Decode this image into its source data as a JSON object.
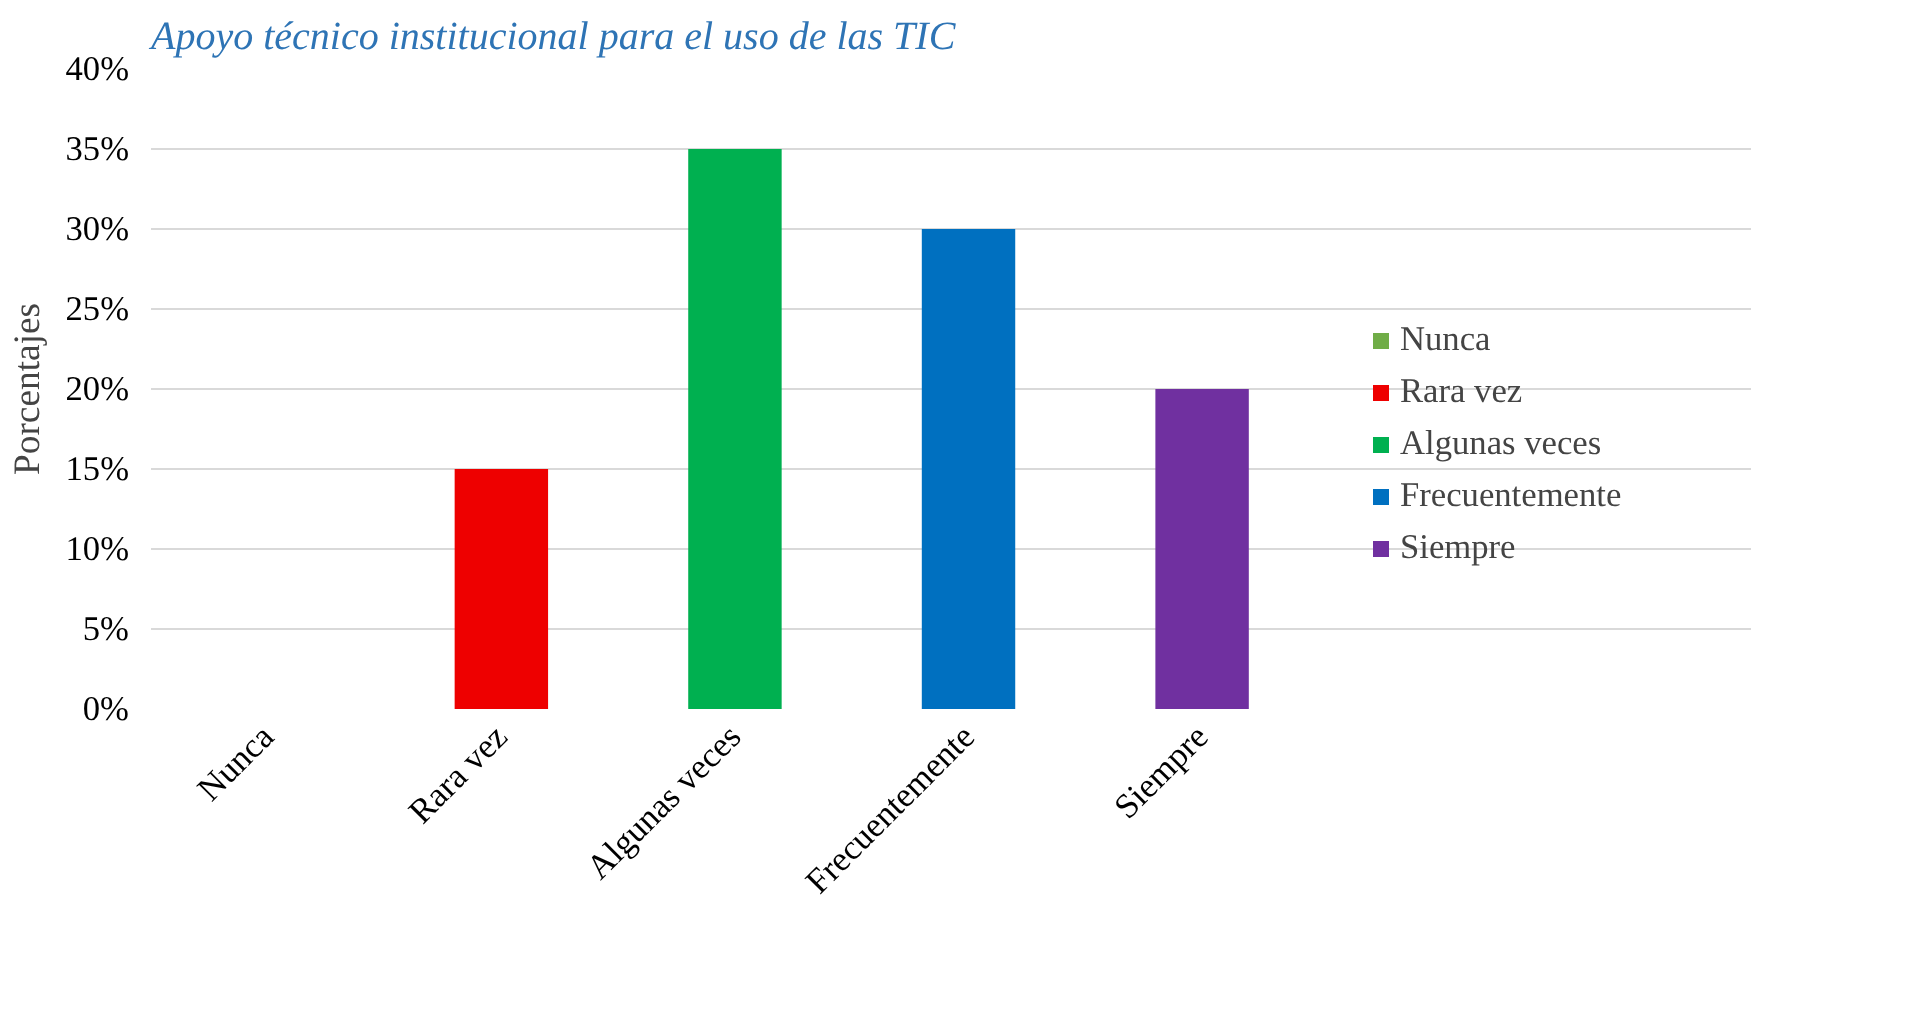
{
  "chart_data": {
    "type": "bar",
    "title": "Apoyo técnico institucional para el uso de las TIC",
    "ylabel": "Porcentajes",
    "categories": [
      "Nunca",
      "Rara vez",
      "Algunas veces",
      "Frecuentemente",
      "Siempre"
    ],
    "series": [
      {
        "name": "Nunca",
        "color": "#70ad47",
        "values": [
          0,
          null,
          null,
          null,
          null
        ]
      },
      {
        "name": "Rara vez",
        "color": "#ee0000",
        "values": [
          null,
          15,
          null,
          null,
          null
        ]
      },
      {
        "name": "Algunas veces",
        "color": "#00b050",
        "values": [
          null,
          null,
          35,
          null,
          null
        ]
      },
      {
        "name": "Frecuentemente",
        "color": "#0070c0",
        "values": [
          null,
          null,
          null,
          30,
          null
        ]
      },
      {
        "name": "Siempre",
        "color": "#7030a0",
        "values": [
          null,
          null,
          null,
          null,
          20
        ]
      }
    ],
    "ylim": [
      0,
      40
    ],
    "yticks": [
      {
        "value": 0,
        "label": "0%"
      },
      {
        "value": 5,
        "label": "5%"
      },
      {
        "value": 10,
        "label": "10%"
      },
      {
        "value": 15,
        "label": "15%"
      },
      {
        "value": 20,
        "label": "20%"
      },
      {
        "value": 25,
        "label": "25%"
      },
      {
        "value": 30,
        "label": "30%"
      },
      {
        "value": 35,
        "label": "35%"
      },
      {
        "value": 40,
        "label": "40%"
      }
    ],
    "grid": "y",
    "legend": "right"
  }
}
